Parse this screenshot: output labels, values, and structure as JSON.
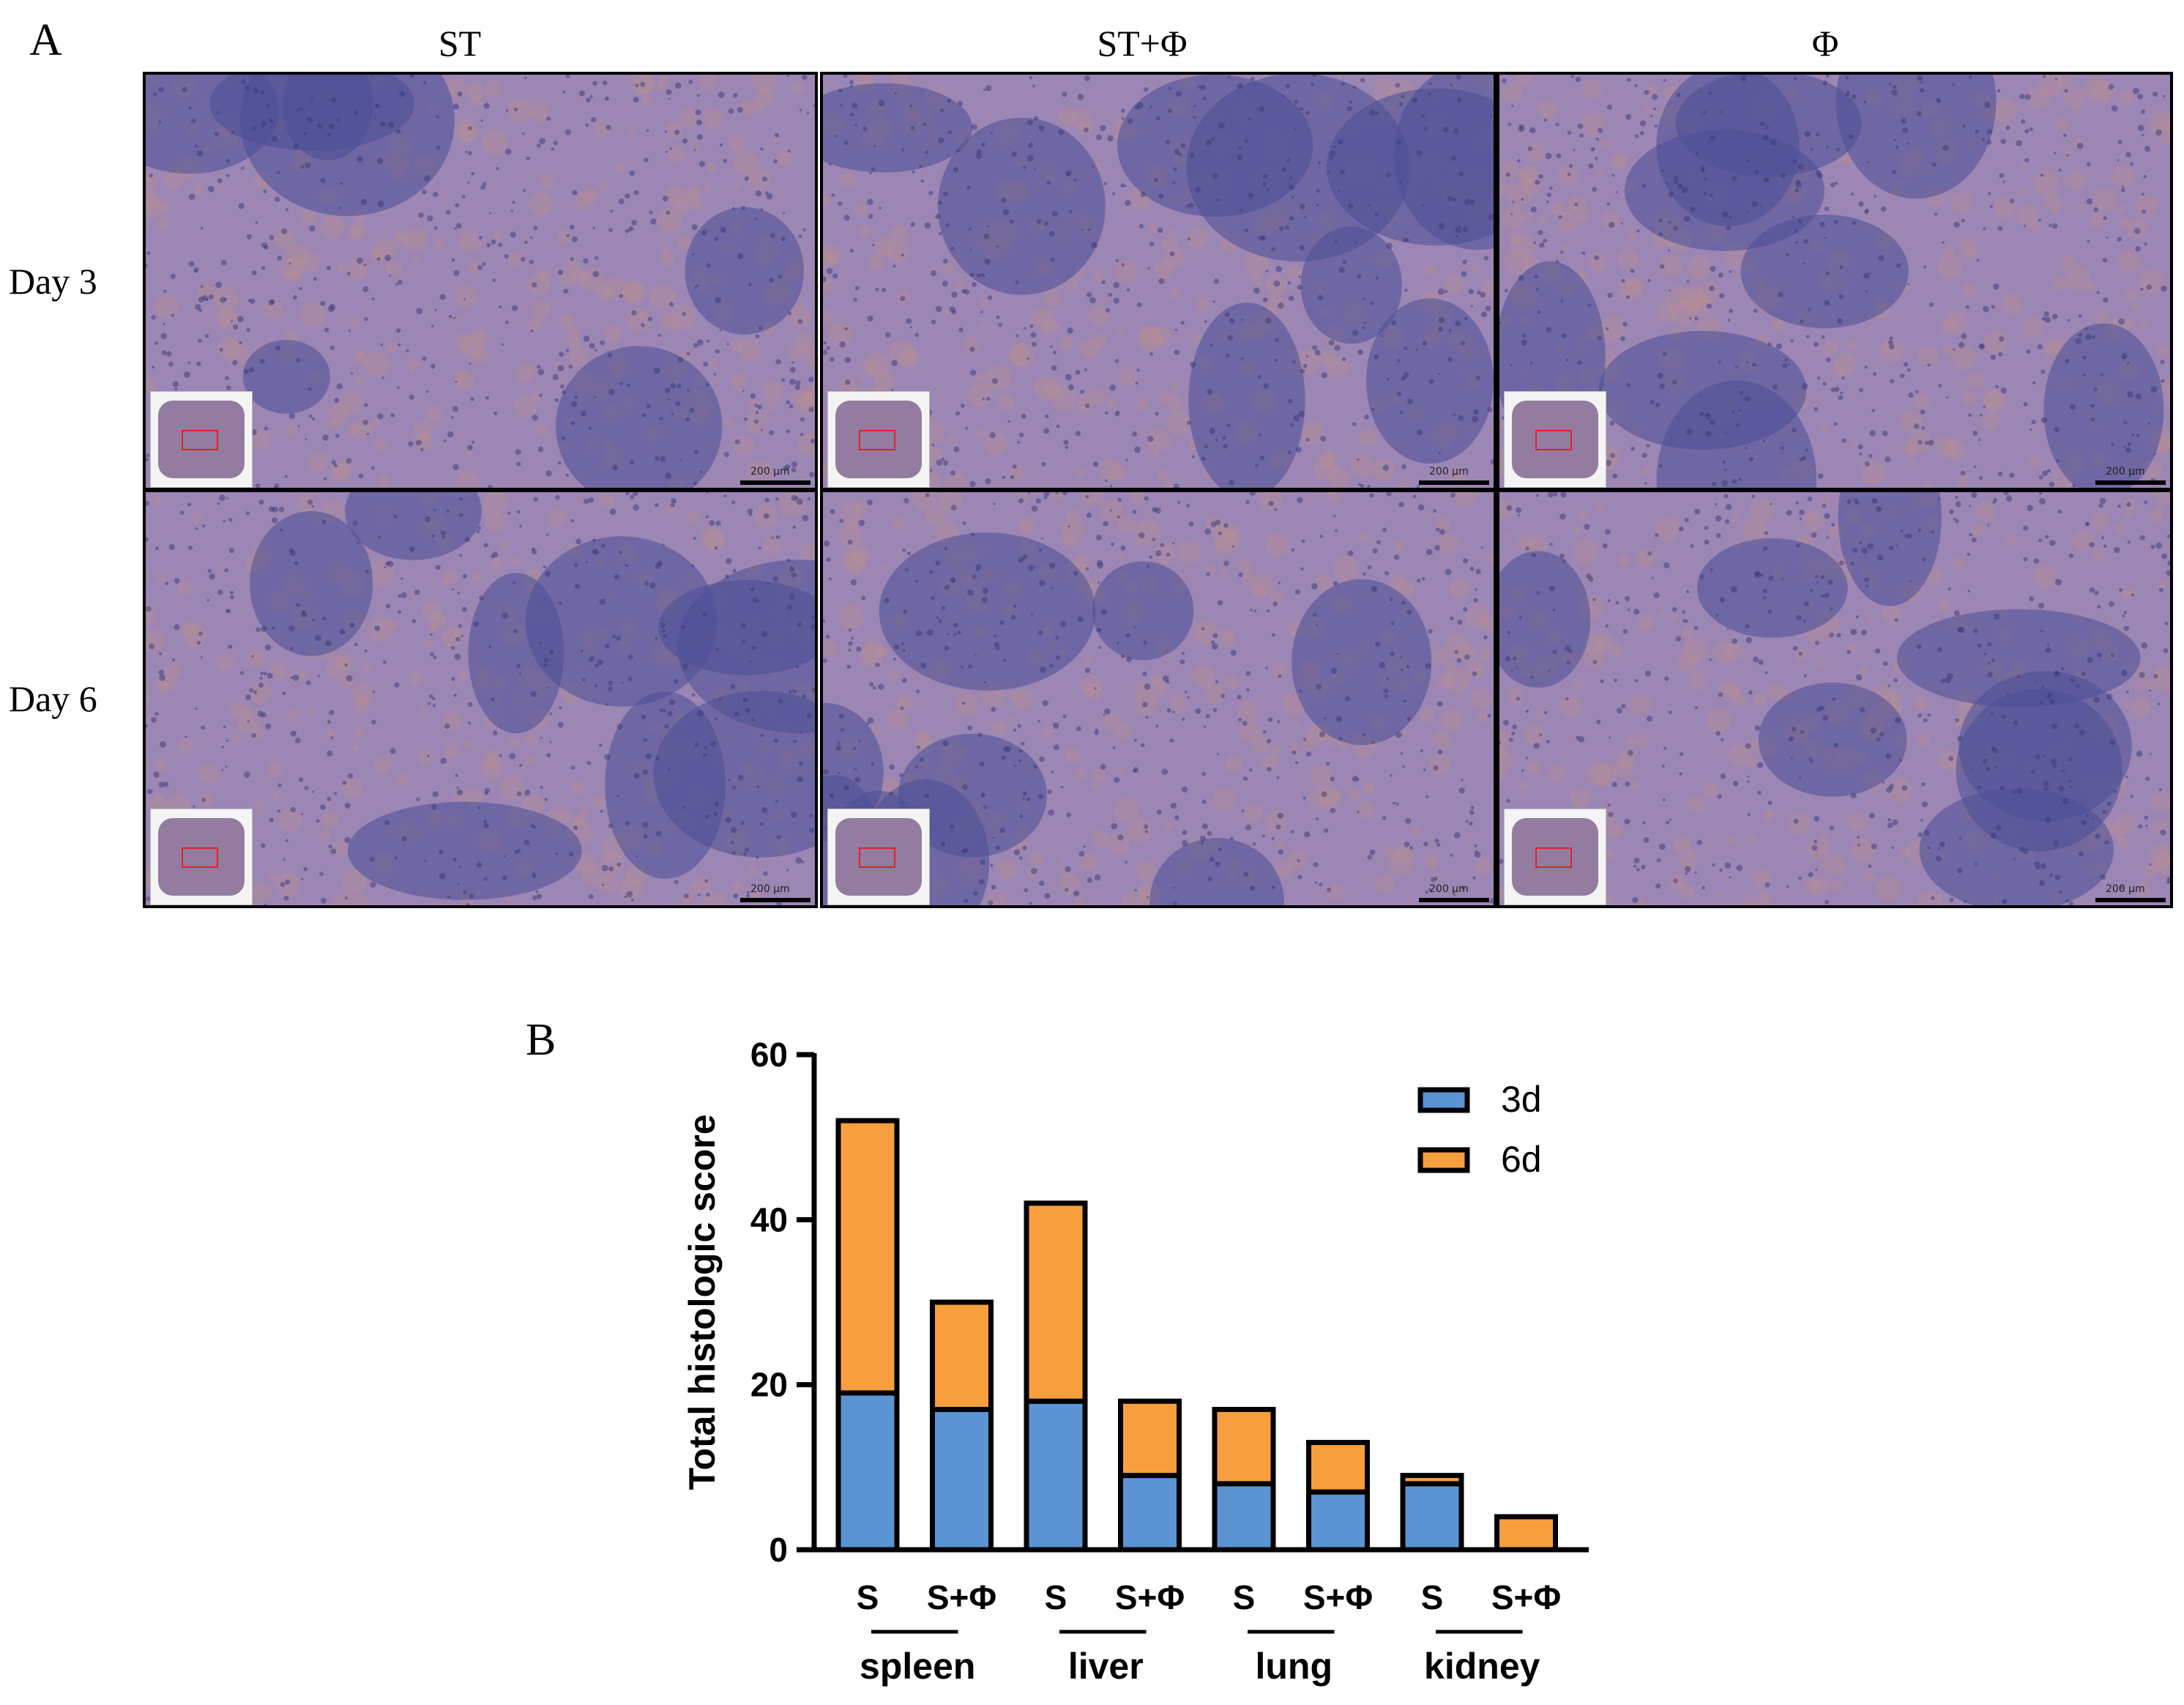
{
  "panel_a": {
    "letter": "A",
    "columns": [
      "ST",
      "ST+Φ",
      "Φ"
    ],
    "rows": [
      "Day 3",
      "Day 6"
    ],
    "scale_label": "200 μm",
    "colors": {
      "tissue_bg": "#9c86b4",
      "follicle": "#4a4f96",
      "eosin": "#b98f8f",
      "roi": "#e2202a"
    }
  },
  "panel_b": {
    "letter": "B"
  },
  "chart_data": {
    "type": "bar",
    "stacked": true,
    "title": "",
    "ylabel": "Total histologic score",
    "xlabel": "",
    "ylim": [
      0,
      60
    ],
    "yticks": [
      0,
      20,
      40,
      60
    ],
    "categories": [
      "S",
      "S+Φ",
      "S",
      "S+Φ",
      "S",
      "S+Φ",
      "S",
      "S+Φ"
    ],
    "groups": [
      {
        "label": "spleen",
        "start": 0,
        "end": 1
      },
      {
        "label": "liver",
        "start": 2,
        "end": 3
      },
      {
        "label": "lung",
        "start": 4,
        "end": 5
      },
      {
        "label": "kidney",
        "start": 6,
        "end": 7
      }
    ],
    "series": [
      {
        "name": "3d",
        "color": "#5b93d3",
        "values": [
          19,
          17,
          18,
          9,
          8,
          7,
          8,
          0
        ]
      },
      {
        "name": "6d",
        "color": "#f79f3f",
        "values": [
          33,
          13,
          24,
          9,
          9,
          6,
          1,
          4
        ]
      }
    ],
    "legend_position": "top-right",
    "grid": false
  }
}
